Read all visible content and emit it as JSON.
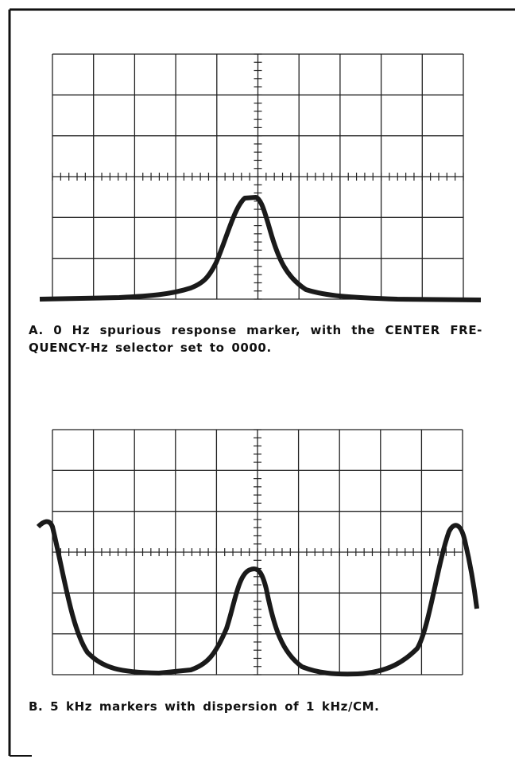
{
  "captions": [
    {
      "lines": [
        "A. 0 Hz spurious response marker, with the CENTER FRE-",
        "QUENCY-Hz selector set to 0000."
      ]
    },
    {
      "lines": [
        "B. 5 kHz markers with dispersion of 1 kHz/CM."
      ]
    }
  ]
}
